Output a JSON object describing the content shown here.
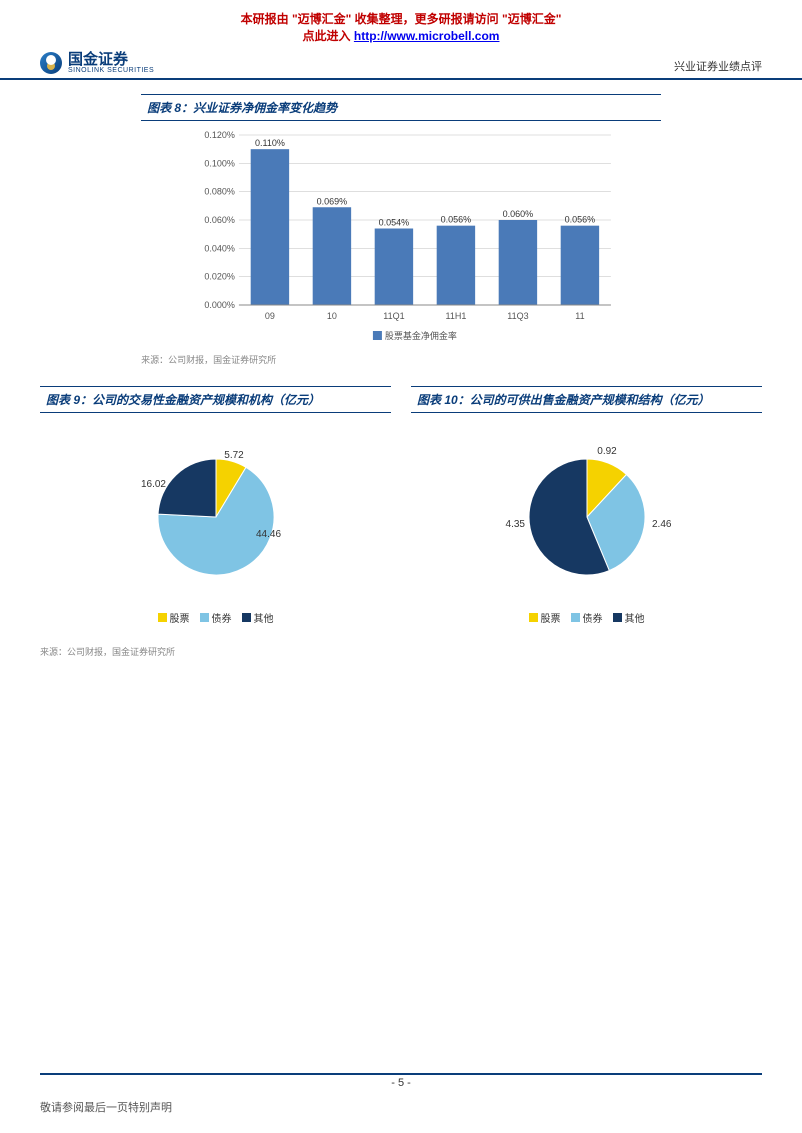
{
  "banner": {
    "line1_a": "本研报由",
    "line1_b": "\"迈博汇金\"",
    "line1_c": "收集整理，更多研报请访问",
    "line1_d": "\"迈博汇金\"",
    "line2_a": "点此进入",
    "link": "http://www.microbell.com"
  },
  "header": {
    "brand_cn": "国金证券",
    "brand_en": "SINOLINK SECURITIES",
    "right": "兴业证券业绩点评"
  },
  "chart8": {
    "title": "图表 8：兴业证券净佣金率变化趋势",
    "type": "bar",
    "categories": [
      "09",
      "10",
      "11Q1",
      "11H1",
      "11Q3",
      "11"
    ],
    "values": [
      0.11,
      0.069,
      0.054,
      0.056,
      0.06,
      0.056
    ],
    "value_labels": [
      "0.110%",
      "0.069%",
      "0.054%",
      "0.056%",
      "0.060%",
      "0.056%"
    ],
    "bar_color": "#4a7ab8",
    "ylim": [
      0,
      0.12
    ],
    "ytick_step": 0.02,
    "ytick_labels": [
      "0.000%",
      "0.020%",
      "0.040%",
      "0.060%",
      "0.080%",
      "0.100%",
      "0.120%"
    ],
    "legend_text": "股票基金净佣金率",
    "grid_color": "#bfbfbf",
    "background_color": "#ffffff",
    "axis_fontsize": 9,
    "source": "来源：公司财报，国金证券研究所"
  },
  "chart9": {
    "title": "图表 9：公司的交易性金融资产规模和机构（亿元）",
    "type": "pie",
    "slices": [
      {
        "label": "股票",
        "value": 5.72,
        "color": "#f5d200"
      },
      {
        "label": "债券",
        "value": 44.46,
        "color": "#7fc4e4"
      },
      {
        "label": "其他",
        "value": 16.02,
        "color": "#163862"
      }
    ],
    "legend": [
      "股票",
      "债券",
      "其他"
    ],
    "source": "来源：公司财报，国金证券研究所"
  },
  "chart10": {
    "title": "图表 10：公司的可供出售金融资产规模和结构（亿元）",
    "type": "pie",
    "slices": [
      {
        "label": "股票",
        "value": 0.92,
        "color": "#f5d200"
      },
      {
        "label": "债券",
        "value": 2.46,
        "color": "#7fc4e4"
      },
      {
        "label": "其他",
        "value": 4.35,
        "color": "#163862"
      }
    ],
    "legend": [
      "股票",
      "债券",
      "其他"
    ]
  },
  "footer": {
    "page": "- 5 -",
    "disclaimer": "敬请参阅最后一页特别声明"
  }
}
